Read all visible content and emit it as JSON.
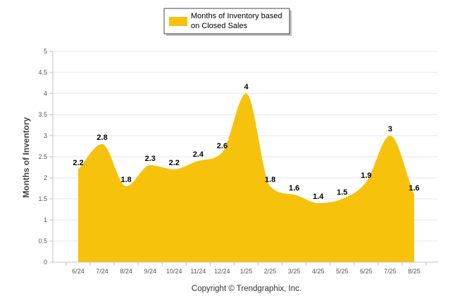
{
  "chart_data": {
    "type": "area",
    "categories": [
      "6/24",
      "7/24",
      "8/24",
      "9/24",
      "10/24",
      "11/24",
      "12/24",
      "1/25",
      "2/25",
      "3/25",
      "4/25",
      "5/25",
      "6/25",
      "7/25",
      "8/25"
    ],
    "series": [
      {
        "name": "Months of Inventory based on Closed Sales",
        "legend_lines": [
          "Months of Inventory based",
          "on Closed Sales"
        ],
        "values": [
          2.2,
          2.8,
          1.8,
          2.3,
          2.2,
          2.4,
          2.6,
          4,
          1.8,
          1.6,
          1.4,
          1.5,
          1.9,
          3,
          1.6
        ],
        "color": "#f6c20c"
      }
    ],
    "ylabel": "Months of Inventory",
    "xlabel": "",
    "ylim": [
      0,
      5
    ],
    "yticks": [
      0,
      0.5,
      1,
      1.5,
      2,
      2.5,
      3,
      3.5,
      4,
      4.5,
      5
    ],
    "ytick_labels": [
      "0",
      "0.5",
      "1",
      "1.5",
      "2",
      "2.5",
      "3",
      "3.5",
      "4",
      "4.5",
      "5"
    ],
    "grid": true,
    "legend_position": "top-center",
    "data_labels": true
  },
  "footer": {
    "copyright": "Copyright © Trendgraphix, Inc."
  },
  "colors": {
    "area": "#f6c20c",
    "grid": "#e6e6e6",
    "axis": "#c0c0c0"
  }
}
